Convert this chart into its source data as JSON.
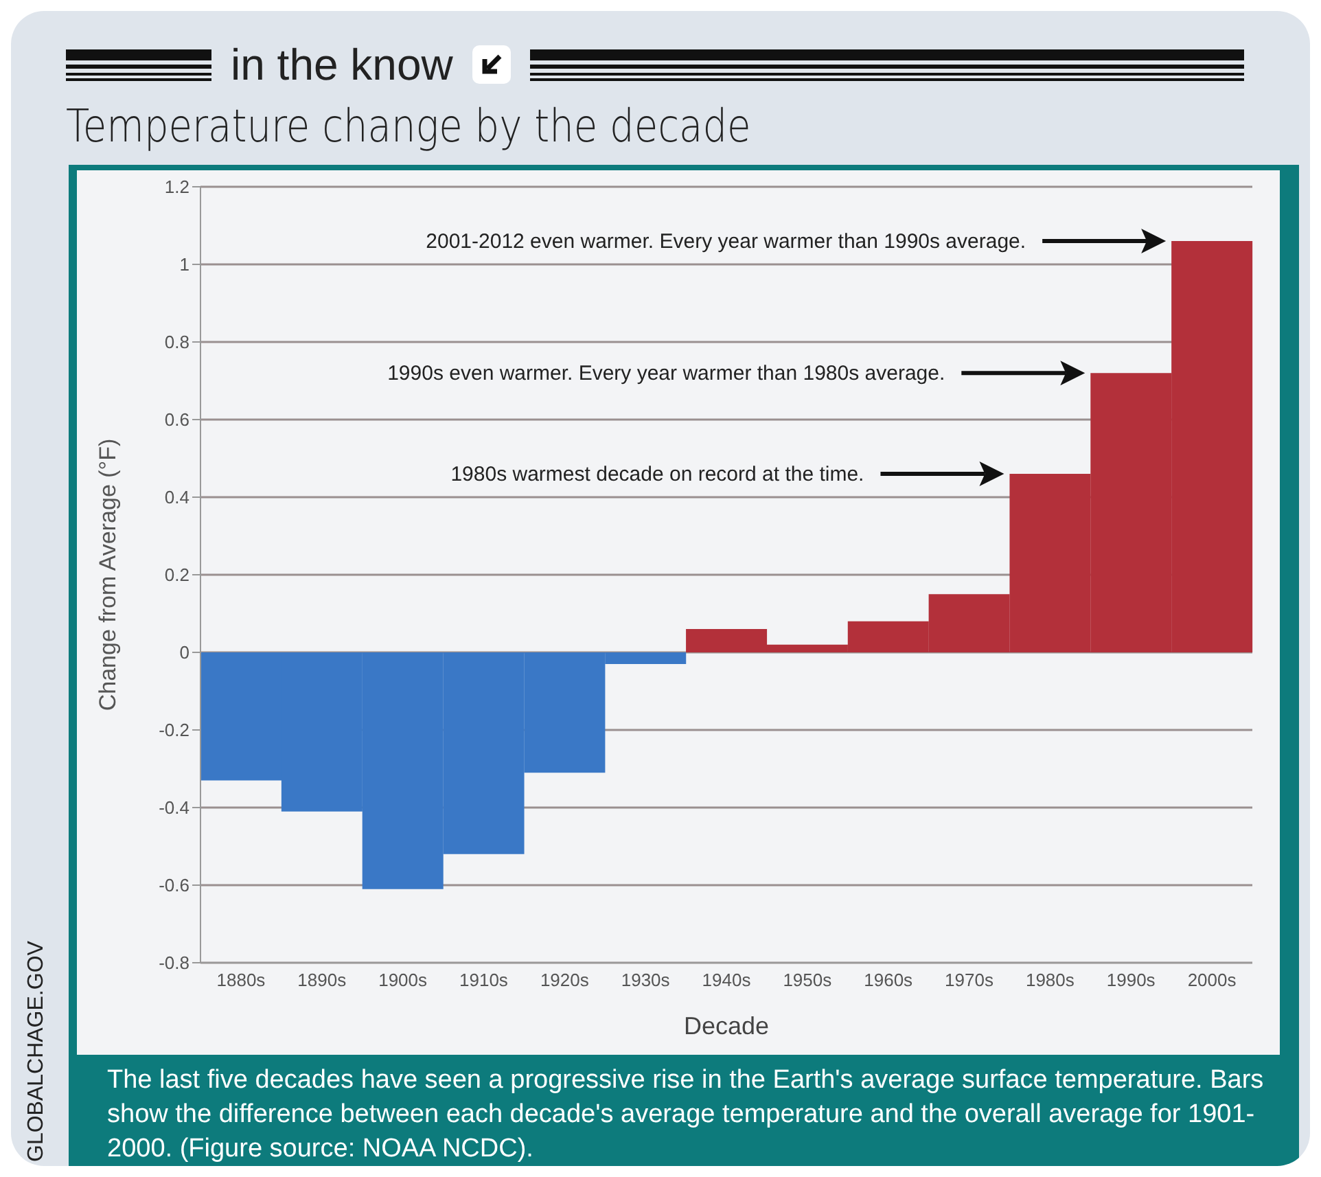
{
  "chart_data": {
    "type": "bar",
    "subtitle": "in the know",
    "title": "Temperature change by the decade",
    "xlabel": "Decade",
    "ylabel": "Change from Average (°F)",
    "categories": [
      "1880s",
      "1890s",
      "1900s",
      "1910s",
      "1920s",
      "1930s",
      "1940s",
      "1950s",
      "1960s",
      "1970s",
      "1980s",
      "1990s",
      "2000s"
    ],
    "values": [
      -0.33,
      -0.41,
      -0.61,
      -0.52,
      -0.31,
      -0.03,
      0.06,
      0.02,
      0.08,
      0.15,
      0.46,
      0.72,
      1.06
    ],
    "colors": [
      "#3a78c6",
      "#3a78c6",
      "#3a78c6",
      "#3a78c6",
      "#3a78c6",
      "#3a78c6",
      "#b3303a",
      "#b3303a",
      "#b3303a",
      "#b3303a",
      "#b3303a",
      "#b3303a",
      "#b3303a"
    ],
    "ylim": [
      -0.8,
      1.2
    ],
    "yticks": [
      -0.8,
      -0.6,
      -0.4,
      -0.2,
      0,
      0.2,
      0.4,
      0.6,
      0.8,
      1,
      1.2
    ],
    "grid": "y",
    "legend": false,
    "annotations": [
      "2001-2012 even warmer. Every year warmer than 1990s average.",
      "1990s even warmer. Every year warmer than 1980s average.",
      "1980s warmest decade on record at the time.",
      "The last five decades have seen a progressive rise in the Earth's average surface temperature. Bars show the difference between each decade's average temperature and the overall average for 1901-2000. (Figure source: NOAA NCDC).",
      "GLOBALCHAGE.GOV"
    ]
  }
}
